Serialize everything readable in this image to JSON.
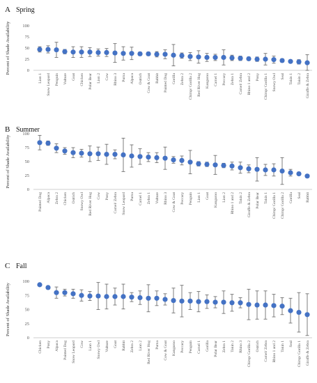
{
  "chart_data": [
    {
      "type": "scatter",
      "panel": "A",
      "title": "Spring",
      "ylabel": "Percent of Shade Availability",
      "ylim": [
        0,
        100
      ],
      "yticks": [
        0,
        25,
        50,
        75,
        100
      ],
      "grid": false,
      "legend": "none",
      "color": "#4472C4",
      "categories": [
        "Lion 1",
        "Snow Leopard",
        "Penguin",
        "Vulture",
        "Goat",
        "Chicken",
        "Polar Bear",
        "Lion 2",
        "Cow",
        "Rhino 3",
        "Puma",
        "Alpaca",
        "Ostrich",
        "Cow & Goat",
        "Rabbit",
        "Painted Dog",
        "Gorilla",
        "Zebra 2",
        "Chimp/ Gorilla 2",
        "Red River Hog",
        "Kangaroo",
        "Camel 1",
        "Peccary",
        "Zebra 1",
        "Camel/ Zebra",
        "Rhino 1 and 2",
        "Pony",
        "Chimp/ Gorilla 1",
        "Snowy Owl",
        "Seal",
        "Takin 1",
        "Takin 2",
        "Giraffe & Zebra"
      ],
      "values": [
        47,
        47,
        46,
        42,
        41,
        41,
        41,
        40,
        40,
        39,
        38,
        38,
        37,
        37,
        36,
        36,
        34,
        33,
        31,
        30,
        29,
        29,
        29,
        28,
        27,
        26,
        25,
        25,
        24,
        22,
        20,
        19,
        17
      ],
      "err": [
        6,
        8,
        17,
        5,
        12,
        12,
        10,
        8,
        9,
        21,
        15,
        14,
        4,
        4,
        6,
        10,
        24,
        6,
        9,
        14,
        9,
        7,
        17,
        6,
        5,
        4,
        5,
        13,
        8,
        4,
        3,
        5,
        18
      ]
    },
    {
      "type": "scatter",
      "panel": "B",
      "title": "Summer",
      "ylabel": "Percent of Shade Availability",
      "ylim": [
        0,
        100
      ],
      "yticks": [
        0,
        25,
        50,
        75,
        100
      ],
      "grid": false,
      "legend": "none",
      "color": "#4472C4",
      "categories": [
        "Painted Dog",
        "Alpaca",
        "Zebra 2",
        "Chicken",
        "Ostrich",
        "Snowy Owl",
        "Red River Hog",
        "Cow",
        "Pony",
        "Camel/ Zebra",
        "Snow Leopard",
        "Puma",
        "Camel 1",
        "Zebra 1",
        "Vulture",
        "Rhino 3",
        "Cow & Goat",
        "Peccary",
        "Penguin",
        "Lion 1",
        "Goat",
        "Kangaroo",
        "Lion 2",
        "Rhino 1 and 2",
        "Takin 2",
        "Giraffe & Zebra",
        "Polar Bear",
        "Takin 1",
        "Chimp/ Gorilla 1",
        "Chimp/ Gorilla 2",
        "Gorilla",
        "Seal",
        "Rabbit"
      ],
      "values": [
        84,
        83,
        74,
        69,
        66,
        65,
        64,
        64,
        63,
        63,
        62,
        60,
        59,
        58,
        57,
        56,
        53,
        52,
        49,
        46,
        45,
        44,
        43,
        42,
        39,
        37,
        36,
        35,
        35,
        33,
        30,
        28,
        24
      ],
      "err": [
        13,
        4,
        8,
        6,
        9,
        7,
        14,
        12,
        18,
        8,
        30,
        20,
        14,
        8,
        9,
        20,
        6,
        8,
        21,
        4,
        4,
        17,
        4,
        7,
        10,
        7,
        21,
        10,
        11,
        24,
        6,
        3,
        3
      ]
    },
    {
      "type": "scatter",
      "panel": "C",
      "title": "Fall",
      "ylabel": "Percent of Shade Availability",
      "ylim": [
        0,
        100
      ],
      "yticks": [
        0,
        25,
        50,
        75,
        100
      ],
      "grid": false,
      "legend": "none",
      "color": "#4472C4",
      "categories": [
        "Chicken",
        "Pony",
        "Alpaca",
        "Painted Dog",
        "Snow Leopard",
        "Cow",
        "Lion 1",
        "Snowy Owl",
        "Vulture",
        "Goat",
        "Rabbit",
        "Zebra 2",
        "Lion 2",
        "Red River Hog",
        "Puma",
        "Cow & Goat",
        "Kangaroo",
        "Peccary",
        "Penguin",
        "Camel 1",
        "Gorilla",
        "Polar Bear",
        "Zebra 1",
        "Takin 2",
        "Rhino 3",
        "Chimp/ Gorilla 2",
        "Ostrich",
        "Camel/ Zebra",
        "Rhino 1 and 2",
        "Takin 1",
        "Seal",
        "Chimp/ Gorilla 1",
        "Giraffe & Zebra"
      ],
      "values": [
        94,
        89,
        80,
        80,
        78,
        75,
        74,
        74,
        73,
        73,
        73,
        72,
        71,
        70,
        70,
        68,
        66,
        65,
        65,
        64,
        64,
        63,
        63,
        62,
        62,
        59,
        58,
        58,
        57,
        56,
        48,
        45,
        41
      ],
      "err": [
        2,
        3,
        10,
        6,
        8,
        10,
        8,
        24,
        22,
        15,
        22,
        8,
        12,
        24,
        13,
        10,
        22,
        28,
        15,
        18,
        12,
        10,
        20,
        15,
        9,
        27,
        25,
        25,
        20,
        15,
        22,
        35,
        37
      ]
    }
  ]
}
